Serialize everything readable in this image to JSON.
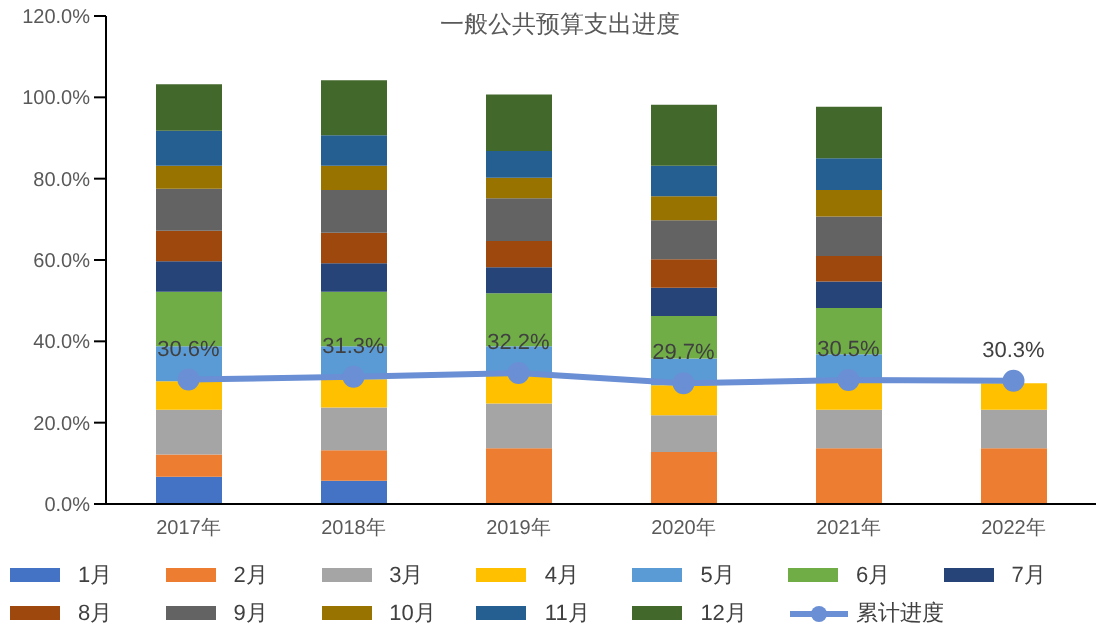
{
  "chart_data": {
    "type": "bar",
    "title": "一般公共预算支出进度",
    "stacked": true,
    "categories": [
      "2017年",
      "2018年",
      "2019年",
      "2020年",
      "2021年",
      "2022年"
    ],
    "ylim": [
      0,
      120
    ],
    "yticks": [
      {
        "value": 0,
        "label": "0.0%"
      },
      {
        "value": 20,
        "label": "20.0%"
      },
      {
        "value": 40,
        "label": "40.0%"
      },
      {
        "value": 60,
        "label": "60.0%"
      },
      {
        "value": 80,
        "label": "80.0%"
      },
      {
        "value": 100,
        "label": "100.0%"
      },
      {
        "value": 120,
        "label": "120.0%"
      }
    ],
    "grid": false,
    "legend": "bottom",
    "series": [
      {
        "name": "1月",
        "color": "#4472c4",
        "values": [
          6.7,
          5.7,
          null,
          null,
          null,
          null
        ]
      },
      {
        "name": "2月",
        "color": "#ed7d31",
        "values": [
          5.5,
          7.5,
          13.7,
          12.8,
          13.7,
          13.7
        ]
      },
      {
        "name": "3月",
        "color": "#a5a5a5",
        "values": [
          11.0,
          10.5,
          11.0,
          9.0,
          9.5,
          9.5
        ]
      },
      {
        "name": "4月",
        "color": "#ffc000",
        "values": [
          7.0,
          7.0,
          7.0,
          7.4,
          7.0,
          6.5
        ]
      },
      {
        "name": "5月",
        "color": "#5b9bd5",
        "values": [
          8.6,
          8.1,
          7.1,
          6.6,
          6.6,
          null
        ]
      },
      {
        "name": "6月",
        "color": "#70ad47",
        "values": [
          13.4,
          13.4,
          13.0,
          10.4,
          11.4,
          null
        ]
      },
      {
        "name": "7月",
        "color": "#264478",
        "values": [
          7.5,
          7.0,
          6.4,
          7.0,
          6.5,
          null
        ]
      },
      {
        "name": "8月",
        "color": "#9e480e",
        "values": [
          7.5,
          7.5,
          6.5,
          7.0,
          6.3,
          null
        ]
      },
      {
        "name": "9月",
        "color": "#636363",
        "values": [
          10.3,
          10.5,
          10.5,
          9.6,
          9.7,
          null
        ]
      },
      {
        "name": "10月",
        "color": "#997300",
        "values": [
          5.7,
          6.0,
          5.0,
          5.9,
          6.5,
          null
        ]
      },
      {
        "name": "11月",
        "color": "#255e91",
        "values": [
          8.6,
          7.5,
          6.6,
          7.5,
          7.8,
          null
        ]
      },
      {
        "name": "12月",
        "color": "#43682b",
        "values": [
          11.4,
          13.5,
          13.9,
          15.0,
          12.7,
          null
        ]
      },
      {
        "name": "累计进度",
        "type": "line",
        "color": "#6a8fd4",
        "marker": "circle",
        "data_labels": true,
        "value_labels": [
          "30.6%",
          "31.3%",
          "32.2%",
          "29.7%",
          "30.5%",
          "30.3%"
        ],
        "values": [
          30.6,
          31.3,
          32.2,
          29.7,
          30.5,
          30.3
        ]
      }
    ]
  }
}
